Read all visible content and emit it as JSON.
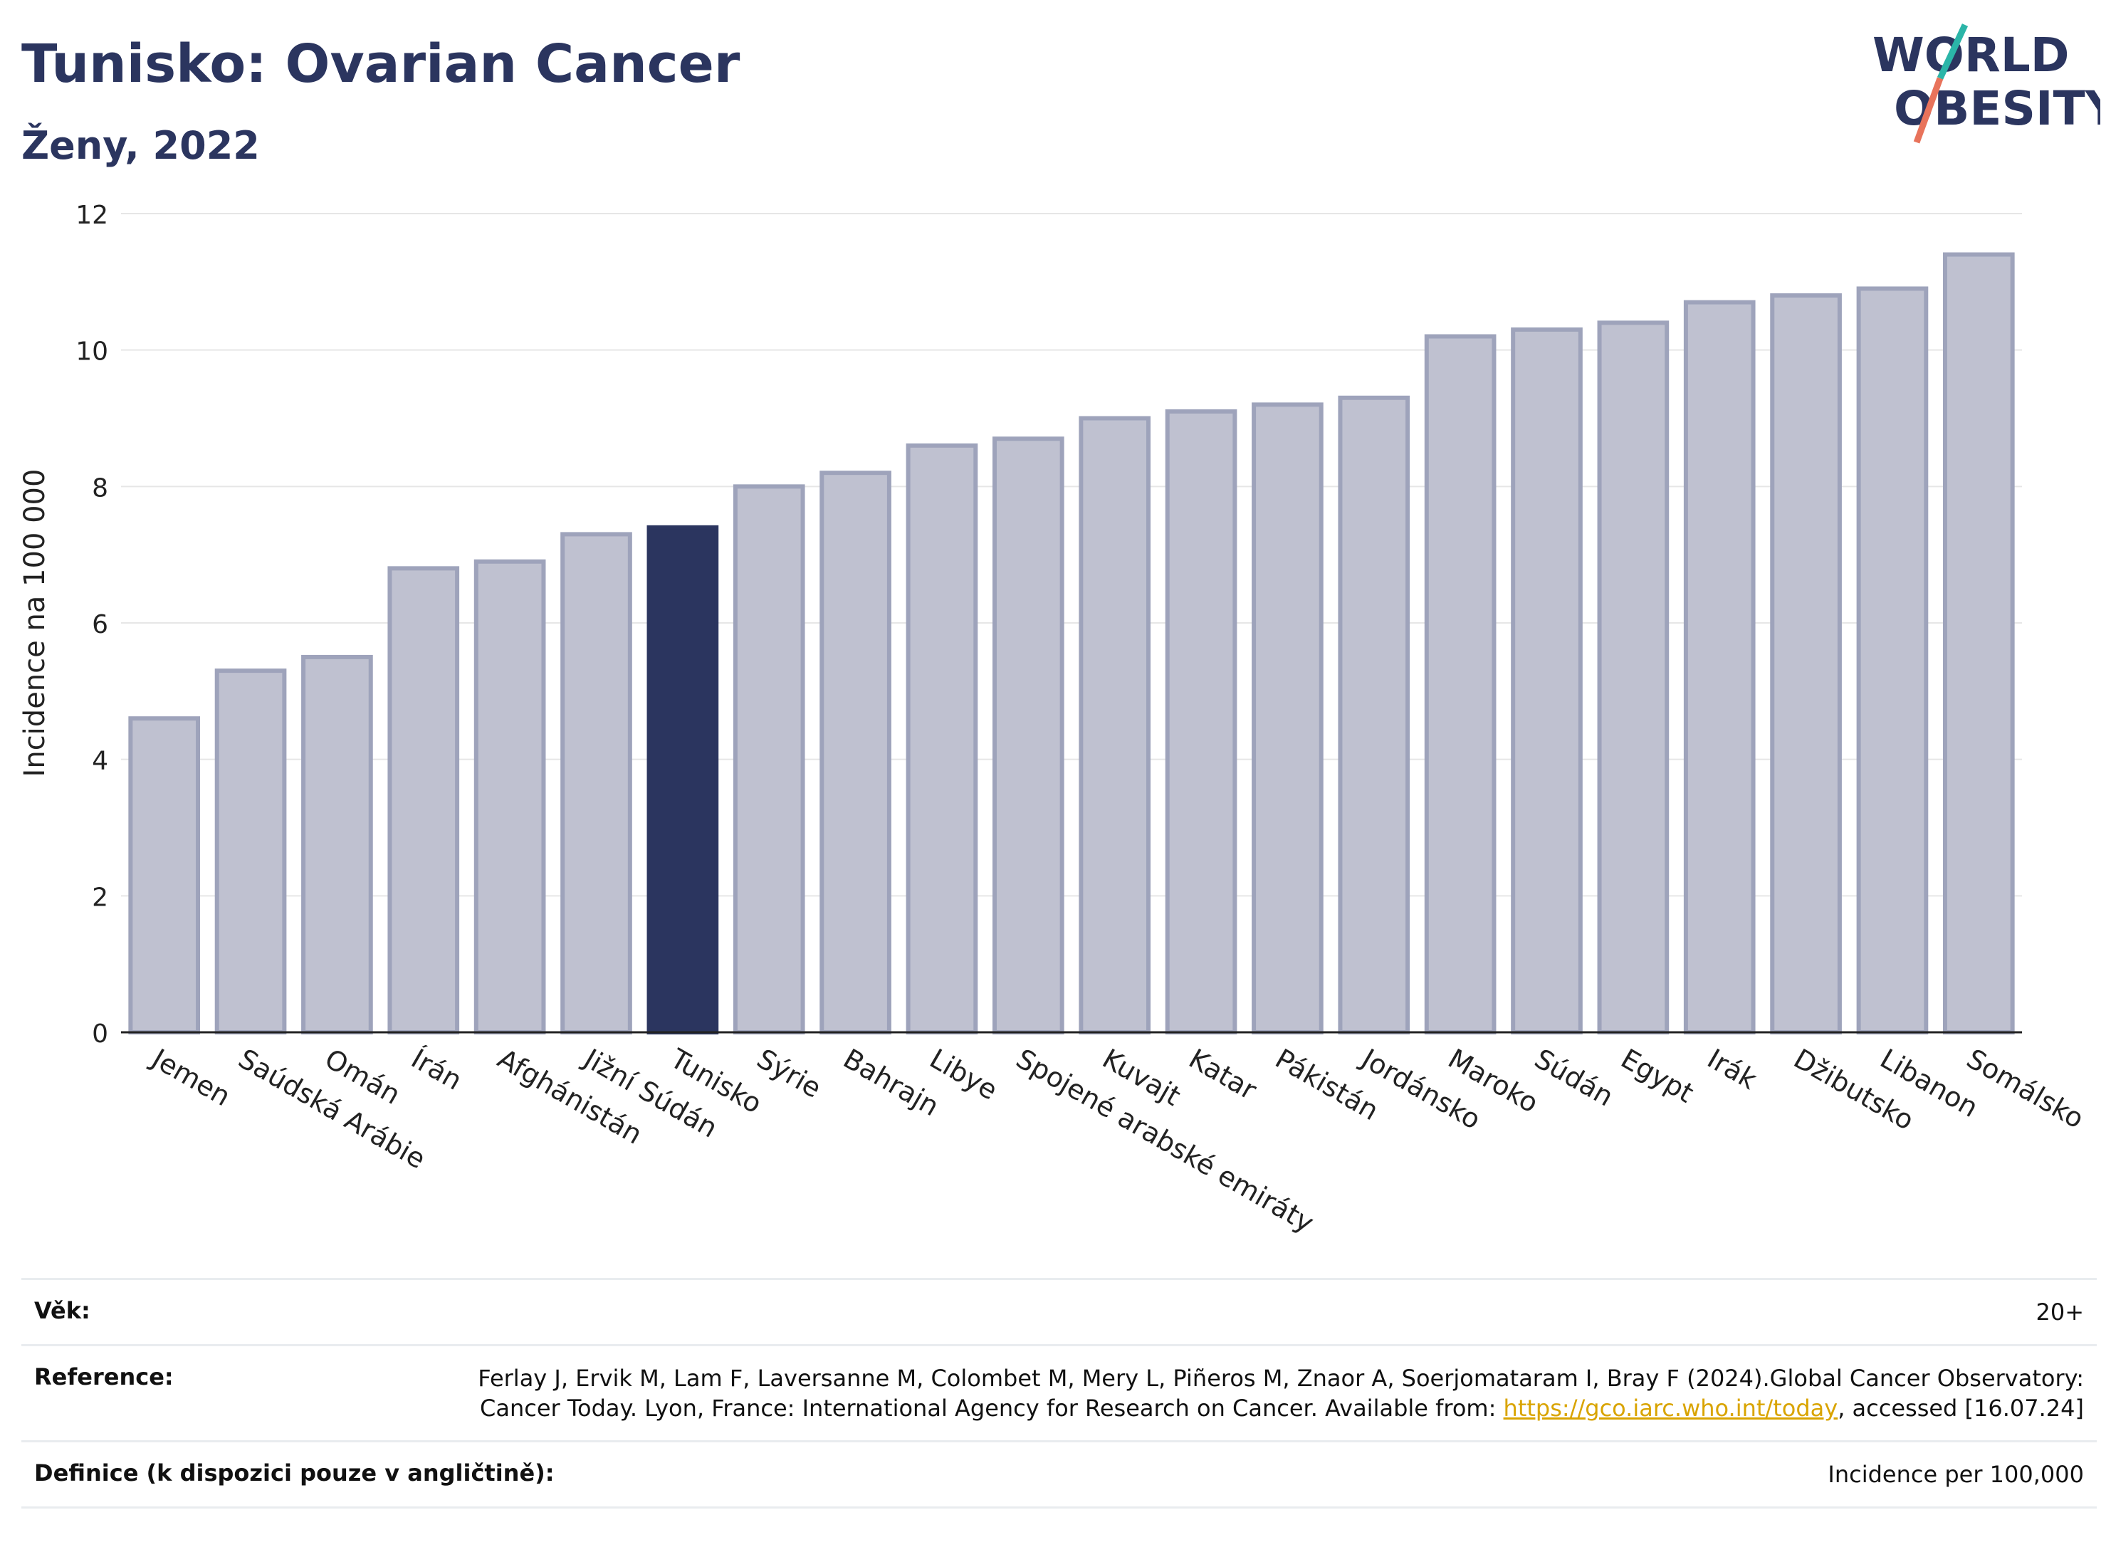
{
  "header": {
    "title": "Tunisko: Ovarian Cancer",
    "subtitle": "Ženy, 2022"
  },
  "logo": {
    "line1": "WORLD",
    "line2": "OBESITY",
    "accent1": "#2bb5a8",
    "accent2": "#e8735b"
  },
  "colors": {
    "bar": "#bfc1d0",
    "bar_stroke": "#9ea3bb",
    "highlight": "#2b355f",
    "grid": "#e6e6e6"
  },
  "chart_data": {
    "type": "bar",
    "ylabel": "Incidence na 100 000",
    "ylim": [
      0,
      12
    ],
    "yticks": [
      0,
      2,
      4,
      6,
      8,
      10,
      12
    ],
    "highlight": "Tunisko",
    "categories": [
      "Jemen",
      "Saúdská Arábie",
      "Omán",
      "Írán",
      "Afghánistán",
      "Jižní Súdán",
      "Tunisko",
      "Sýrie",
      "Bahrajn",
      "Libye",
      "Spojené arabské emiráty",
      "Kuvajt",
      "Katar",
      "Pákistán",
      "Jordánsko",
      "Maroko",
      "Súdán",
      "Egypt",
      "Irák",
      "Džibutsko",
      "Libanon",
      "Somálsko"
    ],
    "values": [
      4.6,
      5.3,
      5.5,
      6.8,
      6.9,
      7.3,
      7.4,
      8.0,
      8.2,
      8.6,
      8.7,
      9.0,
      9.1,
      9.2,
      9.3,
      10.2,
      10.3,
      10.4,
      10.7,
      10.8,
      10.9,
      11.4
    ]
  },
  "info": {
    "age_label": "Věk:",
    "age_value": "20+",
    "ref_label": "Reference:",
    "ref_text1": "Ferlay J, Ervik M, Lam F, Laversanne M, Colombet M, Mery L, Piñeros M, Znaor A, Soerjomataram I, Bray F (2024).Global Cancer Observatory: Cancer Today. Lyon, France: International Agency for Research on Cancer. Available from: ",
    "ref_link": "https://gco.iarc.who.int/today",
    "ref_text2": ", accessed [16.07.24]",
    "def_label": "Definice (k dispozici pouze v angličtině):",
    "def_value": "Incidence per 100,000"
  }
}
